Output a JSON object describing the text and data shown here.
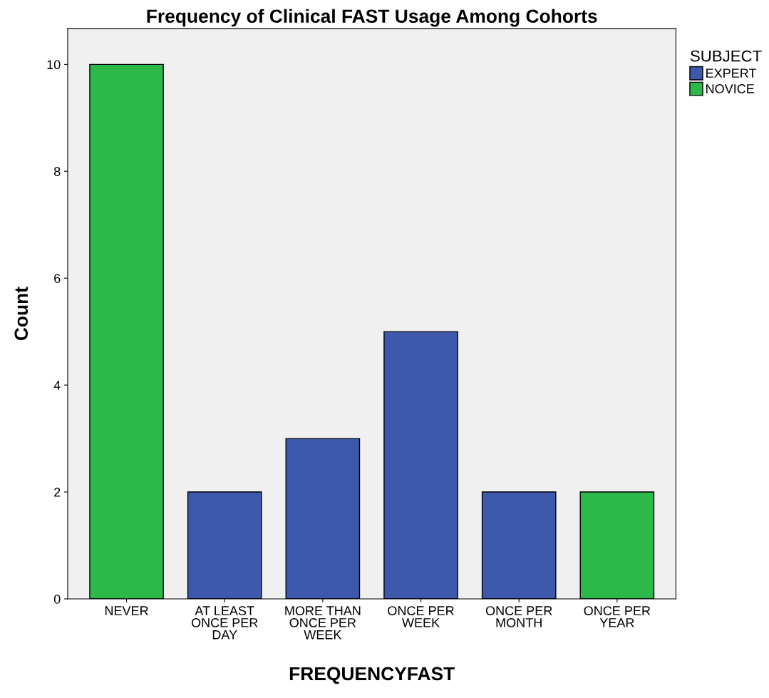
{
  "chart_data": {
    "type": "bar",
    "title": "Frequency of Clinical FAST Usage Among Cohorts",
    "xlabel": "FREQUENCYFAST",
    "ylabel": "Count",
    "legend_title": "SUBJECT",
    "categories": [
      "NEVER",
      "AT LEAST\nONCE PER\nDAY",
      "MORE THAN\nONCE PER\nWEEK",
      "ONCE PER\nWEEK",
      "ONCE PER\nMONTH",
      "ONCE PER\nYEAR"
    ],
    "series": [
      {
        "name": "EXPERT",
        "color": "#3e58ac",
        "values": [
          null,
          2,
          3,
          5,
          2,
          null
        ]
      },
      {
        "name": "NOVICE",
        "color": "#2db84a",
        "values": [
          10,
          null,
          null,
          null,
          null,
          2
        ]
      }
    ],
    "ylim": [
      0,
      10.67
    ],
    "yticks": [
      0,
      2,
      4,
      6,
      8,
      10
    ],
    "grid": false,
    "legend": "top right"
  }
}
